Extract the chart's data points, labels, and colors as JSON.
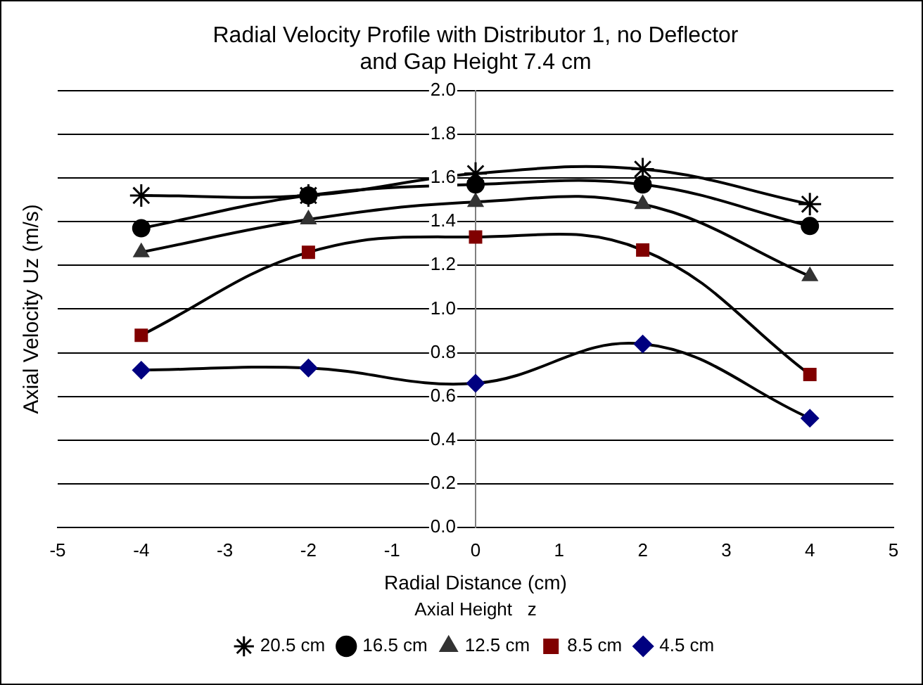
{
  "chart_data": {
    "type": "line",
    "title": "Radial Velocity Profile with Distributor 1, no Deflector and Gap Height 7.4 cm",
    "xlabel": "Radial Distance (cm)",
    "ylabel": "Axial Velocity Uz (m/s)",
    "legend_title": "Axial Height   z",
    "x": [
      -4,
      -2,
      0,
      2,
      4
    ],
    "series": [
      {
        "name": "4.5 cm",
        "color": "#000080",
        "marker": "diamond",
        "values": [
          0.72,
          0.73,
          0.66,
          0.84,
          0.5
        ]
      },
      {
        "name": "8.5 cm",
        "color": "#800000",
        "marker": "square",
        "values": [
          0.88,
          1.26,
          1.33,
          1.27,
          0.7
        ]
      },
      {
        "name": "12.5 cm",
        "color": "#333333",
        "marker": "triangle",
        "values": [
          1.26,
          1.41,
          1.49,
          1.48,
          1.15
        ]
      },
      {
        "name": "16.5 cm",
        "color": "#000000",
        "marker": "circle",
        "values": [
          1.37,
          1.52,
          1.57,
          1.57,
          1.38
        ]
      },
      {
        "name": "20.5 cm",
        "color": "#000000",
        "marker": "cross",
        "values": [
          1.52,
          1.52,
          1.62,
          1.64,
          1.48
        ]
      }
    ],
    "xlim": [
      -5,
      5
    ],
    "xticks": [
      -5,
      -4,
      -3,
      -2,
      -1,
      0,
      1,
      2,
      3,
      4,
      5
    ],
    "ylim": [
      0,
      2
    ],
    "yticks": [
      {
        "value": 0,
        "label": "0.0"
      },
      {
        "value": 0.2,
        "label": "0.2"
      },
      {
        "value": 0.4,
        "label": "0.4"
      },
      {
        "value": 0.6,
        "label": "0.6"
      },
      {
        "value": 0.8,
        "label": "0.8"
      },
      {
        "value": 1,
        "label": "1.0"
      },
      {
        "value": 1.2,
        "label": "1.2"
      },
      {
        "value": 1.4,
        "label": "1.4"
      },
      {
        "value": 1.6,
        "label": "1.6"
      },
      {
        "value": 1.8,
        "label": "1.8"
      },
      {
        "value": 2,
        "label": "2.0"
      }
    ],
    "grid": "y",
    "legend": "bottom",
    "line_style": "solid"
  }
}
